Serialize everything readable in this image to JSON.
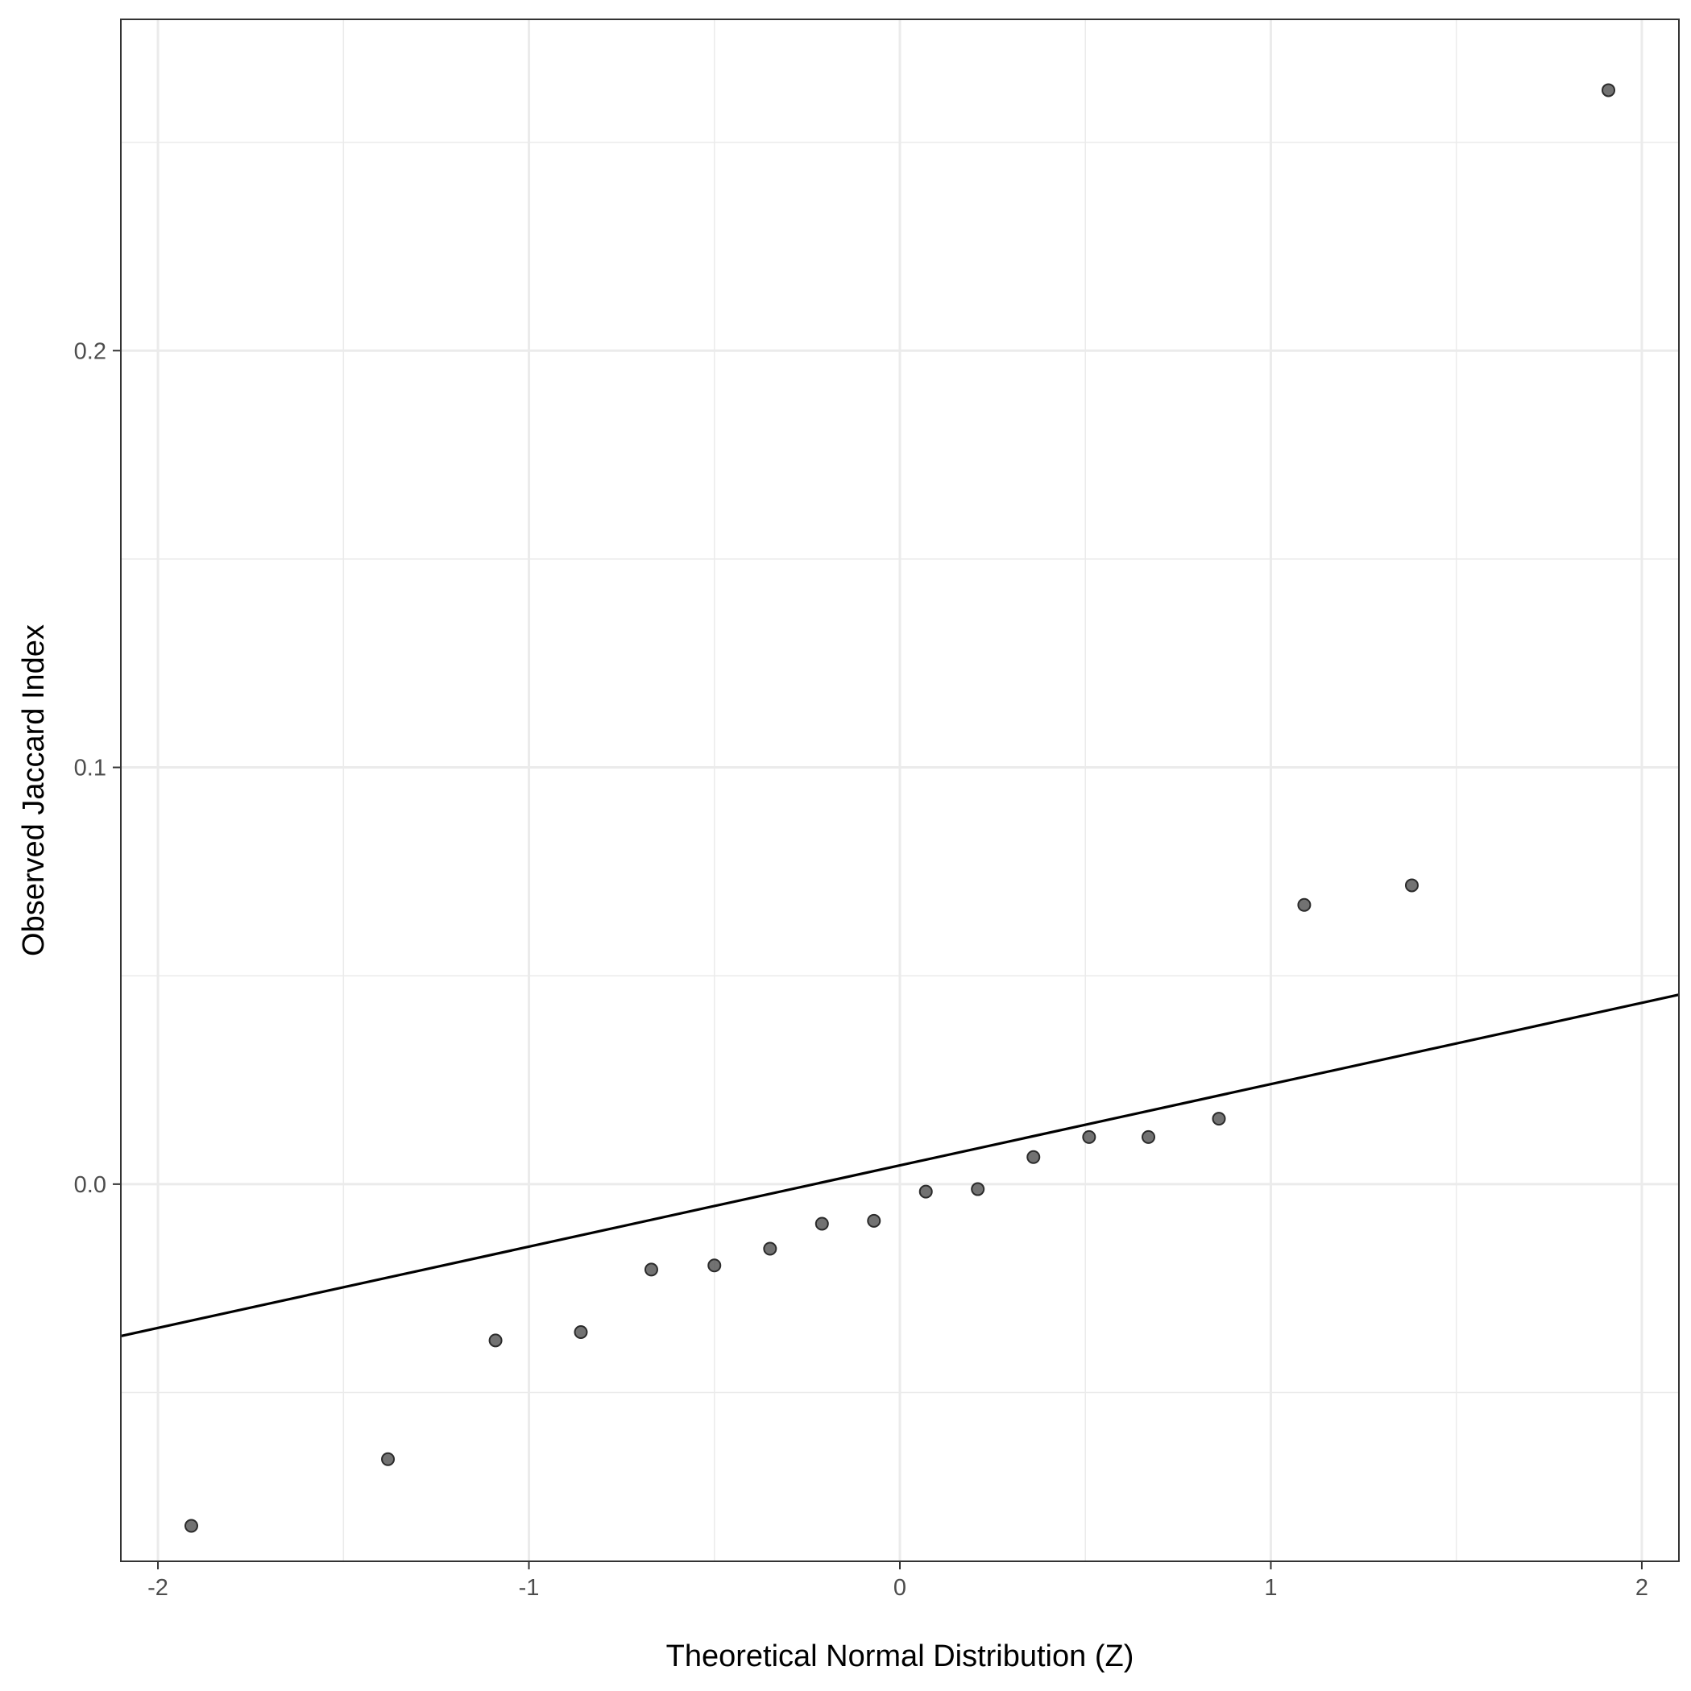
{
  "chart_data": {
    "type": "scatter",
    "title": "",
    "xlabel": "Theoretical Normal Distribution (Z)",
    "ylabel": "Observed Jaccard Index",
    "xlim": [
      -2.1,
      2.1
    ],
    "ylim": [
      -0.0905,
      0.2795
    ],
    "x_ticks": [
      -2,
      -1,
      0,
      1,
      2
    ],
    "x_tick_labels": [
      "-2",
      "-1",
      "0",
      "1",
      "2"
    ],
    "y_ticks": [
      0.0,
      0.1,
      0.2
    ],
    "y_tick_labels": [
      "0.0",
      "0.1",
      "0.2"
    ],
    "x_minor_ticks": [
      -1.5,
      -0.5,
      0.5,
      1.5
    ],
    "y_minor_ticks": [
      -0.05,
      0.05,
      0.15,
      0.25
    ],
    "grid": true,
    "legend": "none",
    "point_color": "#595959",
    "line_color": "#000000",
    "points": [
      {
        "x": -1.91,
        "y": -0.082
      },
      {
        "x": -1.38,
        "y": -0.066
      },
      {
        "x": -1.09,
        "y": -0.0375
      },
      {
        "x": -0.86,
        "y": -0.0355
      },
      {
        "x": -0.67,
        "y": -0.0205
      },
      {
        "x": -0.5,
        "y": -0.0195
      },
      {
        "x": -0.35,
        "y": -0.0155
      },
      {
        "x": -0.21,
        "y": -0.0095
      },
      {
        "x": -0.07,
        "y": -0.0088
      },
      {
        "x": 0.07,
        "y": -0.0018
      },
      {
        "x": 0.21,
        "y": -0.0012
      },
      {
        "x": 0.36,
        "y": 0.0065
      },
      {
        "x": 0.51,
        "y": 0.0113
      },
      {
        "x": 0.67,
        "y": 0.0113
      },
      {
        "x": 0.86,
        "y": 0.0157
      },
      {
        "x": 1.09,
        "y": 0.067
      },
      {
        "x": 1.38,
        "y": 0.0717
      },
      {
        "x": 1.91,
        "y": 0.2625
      }
    ],
    "reference_line": {
      "intercept": 0.0045,
      "slope": 0.0195
    }
  }
}
